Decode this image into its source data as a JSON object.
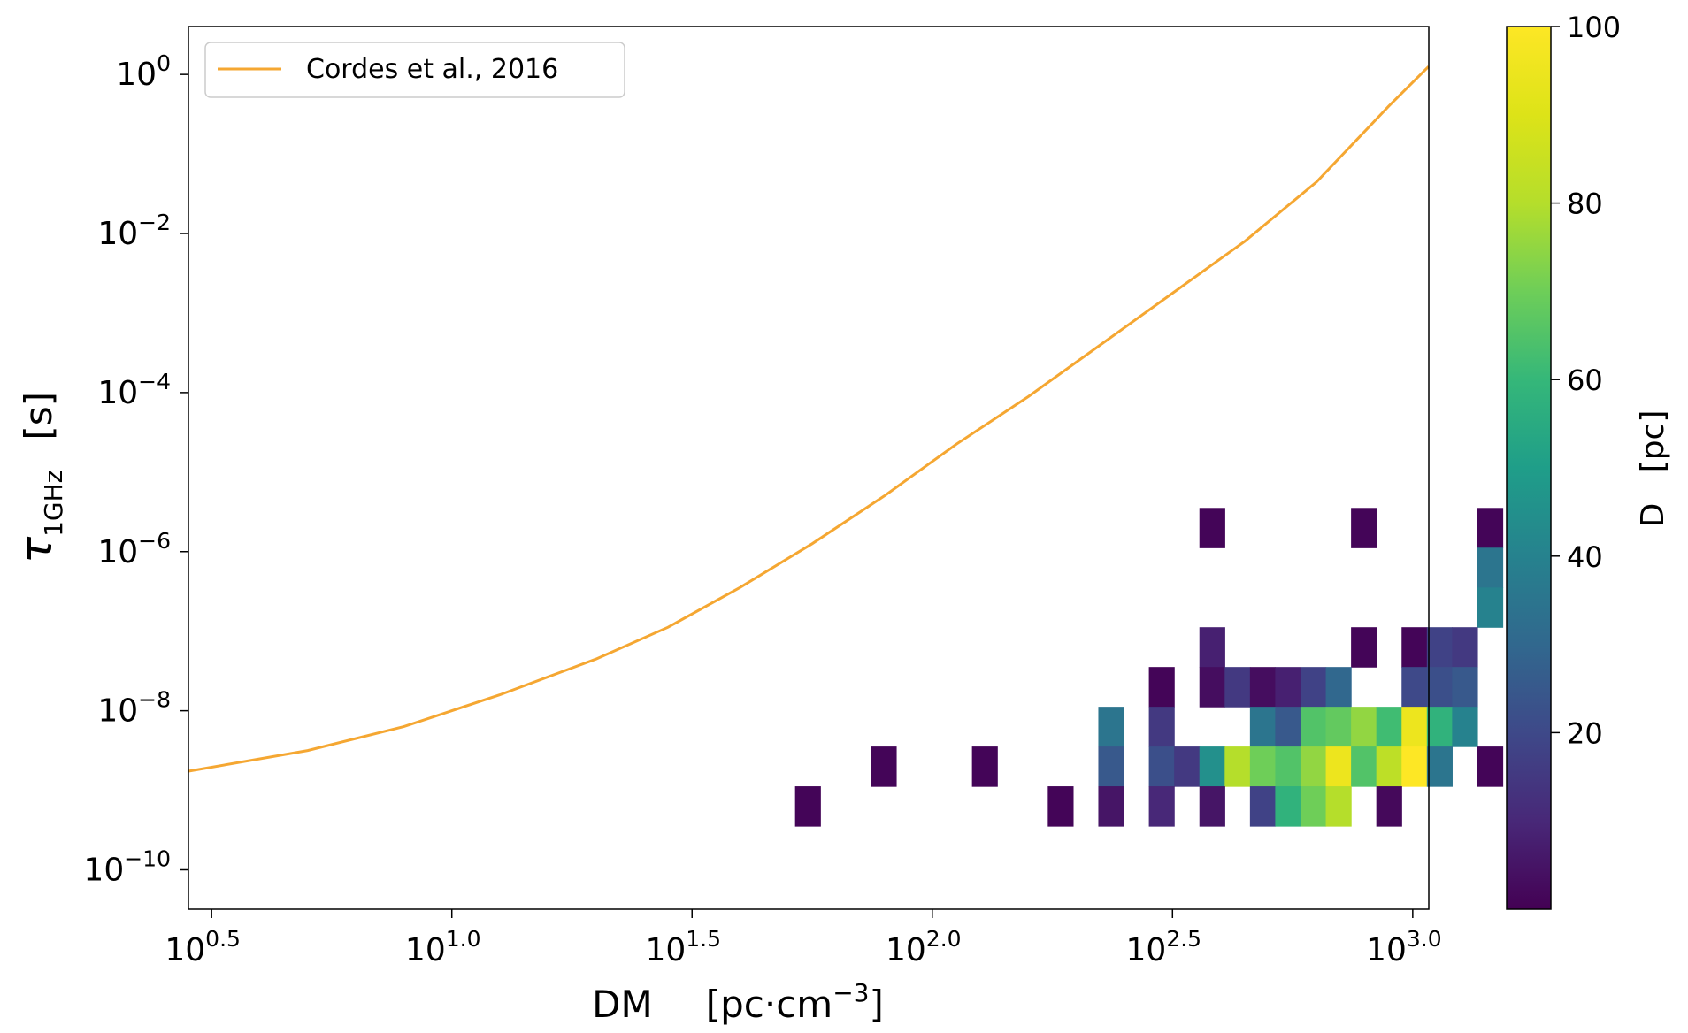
{
  "chart_data": {
    "type": "heatmap",
    "xlabel": {
      "main": "DM",
      "unit_pre": "[pc·cm",
      "unit_sup": "−3",
      "unit_post": "]"
    },
    "ylabel": {
      "symbol": "τ",
      "subscript": "1GHz",
      "unit": "[s]"
    },
    "x_scale": "log",
    "y_scale": "log",
    "xlim": [
      2.83,
      1080
    ],
    "ylim": [
      3.2e-11,
      4.0
    ],
    "x_ticks": [
      {
        "value": 3.162,
        "base": "10",
        "exp": "0.5"
      },
      {
        "value": 10,
        "base": "10",
        "exp": "1.0"
      },
      {
        "value": 31.62,
        "base": "10",
        "exp": "1.5"
      },
      {
        "value": 100,
        "base": "10",
        "exp": "2.0"
      },
      {
        "value": 316.2,
        "base": "10",
        "exp": "2.5"
      },
      {
        "value": 1000,
        "base": "10",
        "exp": "3.0"
      }
    ],
    "y_ticks": [
      {
        "value": 1,
        "base": "10",
        "exp": "0"
      },
      {
        "value": 0.01,
        "base": "10",
        "exp": "−2"
      },
      {
        "value": 0.0001,
        "base": "10",
        "exp": "−4"
      },
      {
        "value": 1e-06,
        "base": "10",
        "exp": "−6"
      },
      {
        "value": 1e-08,
        "base": "10",
        "exp": "−8"
      },
      {
        "value": 1e-10,
        "base": "10",
        "exp": "−10"
      }
    ],
    "bins": {
      "log10_dm_start": 0.452,
      "log10_dm_step": 0.0526,
      "log10_tau_start": -10.45,
      "log10_tau_step": 0.5,
      "note_rows": "rows listed from top (highest tau) to bottom; each cell = mean distance D in pc, null = empty"
    },
    "cells": [
      [
        null,
        null,
        null,
        null,
        null,
        null,
        null,
        null,
        null,
        null,
        null,
        null,
        null,
        null,
        null,
        null,
        null,
        null,
        null,
        null,
        null,
        null,
        null,
        null,
        null,
        null,
        null,
        null,
        null,
        null,
        null,
        null,
        null,
        null,
        null,
        null,
        null,
        null,
        null,
        null,
        1,
        null,
        null,
        null,
        null,
        null,
        1,
        null,
        null,
        null,
        null,
        1
      ],
      [
        null,
        null,
        null,
        null,
        null,
        null,
        null,
        null,
        null,
        null,
        null,
        null,
        null,
        null,
        null,
        null,
        null,
        null,
        null,
        null,
        null,
        null,
        null,
        null,
        null,
        null,
        null,
        null,
        null,
        null,
        null,
        null,
        null,
        null,
        null,
        null,
        null,
        null,
        null,
        null,
        null,
        null,
        null,
        null,
        null,
        null,
        null,
        null,
        null,
        null,
        null,
        35
      ],
      [
        null,
        null,
        null,
        null,
        null,
        null,
        null,
        null,
        null,
        null,
        null,
        null,
        null,
        null,
        null,
        null,
        null,
        null,
        null,
        null,
        null,
        null,
        null,
        null,
        null,
        null,
        null,
        null,
        null,
        null,
        null,
        null,
        null,
        null,
        null,
        null,
        null,
        null,
        null,
        null,
        null,
        null,
        null,
        null,
        null,
        null,
        null,
        null,
        null,
        null,
        null,
        40
      ],
      [
        null,
        null,
        null,
        null,
        null,
        null,
        null,
        null,
        null,
        null,
        null,
        null,
        null,
        null,
        null,
        null,
        null,
        null,
        null,
        null,
        null,
        null,
        null,
        null,
        null,
        null,
        null,
        null,
        null,
        null,
        null,
        null,
        null,
        null,
        null,
        null,
        null,
        null,
        null,
        null,
        8,
        null,
        null,
        null,
        null,
        null,
        1,
        null,
        1,
        18,
        15,
        null
      ],
      [
        null,
        null,
        null,
        null,
        null,
        null,
        null,
        null,
        null,
        null,
        null,
        null,
        null,
        null,
        null,
        null,
        null,
        null,
        null,
        null,
        null,
        null,
        null,
        null,
        null,
        null,
        null,
        null,
        null,
        null,
        null,
        null,
        null,
        null,
        null,
        null,
        null,
        null,
        1,
        null,
        3,
        15,
        3,
        8,
        18,
        30,
        null,
        null,
        20,
        22,
        25,
        null
      ],
      [
        null,
        null,
        null,
        null,
        null,
        null,
        null,
        null,
        null,
        null,
        null,
        null,
        null,
        null,
        null,
        null,
        null,
        null,
        null,
        null,
        null,
        null,
        null,
        null,
        null,
        null,
        null,
        null,
        null,
        null,
        null,
        null,
        null,
        null,
        null,
        null,
        35,
        null,
        15,
        null,
        null,
        null,
        35,
        25,
        65,
        68,
        75,
        62,
        95,
        58,
        40,
        null
      ],
      [
        null,
        null,
        null,
        null,
        null,
        null,
        null,
        null,
        null,
        null,
        null,
        null,
        null,
        null,
        null,
        null,
        null,
        null,
        null,
        null,
        null,
        null,
        null,
        null,
        null,
        null,
        null,
        1,
        null,
        null,
        null,
        1,
        null,
        null,
        null,
        null,
        25,
        null,
        22,
        15,
        45,
        80,
        70,
        65,
        75,
        95,
        65,
        82,
        100,
        35,
        null,
        1
      ],
      [
        null,
        null,
        null,
        null,
        null,
        null,
        null,
        null,
        null,
        null,
        null,
        null,
        null,
        null,
        null,
        null,
        null,
        null,
        null,
        null,
        null,
        null,
        null,
        null,
        1,
        null,
        null,
        null,
        null,
        null,
        null,
        null,
        null,
        null,
        1,
        null,
        5,
        null,
        10,
        null,
        5,
        null,
        18,
        58,
        70,
        80,
        null,
        2,
        null,
        null,
        null,
        null
      ],
      [
        null,
        null,
        null,
        null,
        null,
        null,
        null,
        null,
        null,
        null,
        null,
        null,
        null,
        null,
        null,
        null,
        null,
        null,
        null,
        null,
        null,
        null,
        null,
        null,
        null,
        null,
        null,
        null,
        null,
        null,
        null,
        null,
        null,
        null,
        null,
        null,
        null,
        null,
        null,
        null,
        null,
        null,
        null,
        null,
        null,
        null,
        null,
        null,
        null,
        null,
        null,
        null
      ],
      [
        null,
        null,
        null,
        null,
        null,
        null,
        null,
        null,
        null,
        null,
        null,
        null,
        null,
        null,
        null,
        null,
        null,
        null,
        null,
        null,
        null,
        null,
        null,
        null,
        null,
        null,
        null,
        null,
        null,
        null,
        null,
        null,
        null,
        null,
        null,
        null,
        null,
        null,
        null,
        null,
        null,
        null,
        null,
        null,
        null,
        null,
        null,
        null,
        null,
        null,
        null,
        null
      ]
    ],
    "colorbar": {
      "label": "D   [pc]",
      "ticks": [
        20,
        40,
        60,
        80,
        100
      ],
      "min": 0,
      "max": 100,
      "colormap": "viridis"
    },
    "line": {
      "name": "Cordes et al., 2016",
      "color": "#f5a732",
      "points_log10": [
        [
          0.452,
          -8.76
        ],
        [
          0.7,
          -8.5
        ],
        [
          0.9,
          -8.2
        ],
        [
          1.1,
          -7.8
        ],
        [
          1.3,
          -7.35
        ],
        [
          1.45,
          -6.95
        ],
        [
          1.6,
          -6.45
        ],
        [
          1.75,
          -5.9
        ],
        [
          1.9,
          -5.3
        ],
        [
          2.05,
          -4.65
        ],
        [
          2.2,
          -4.05
        ],
        [
          2.35,
          -3.4
        ],
        [
          2.5,
          -2.75
        ],
        [
          2.65,
          -2.1
        ],
        [
          2.8,
          -1.35
        ],
        [
          2.95,
          -0.4
        ],
        [
          3.033,
          0.1
        ]
      ]
    },
    "legend_position": "top-left"
  }
}
